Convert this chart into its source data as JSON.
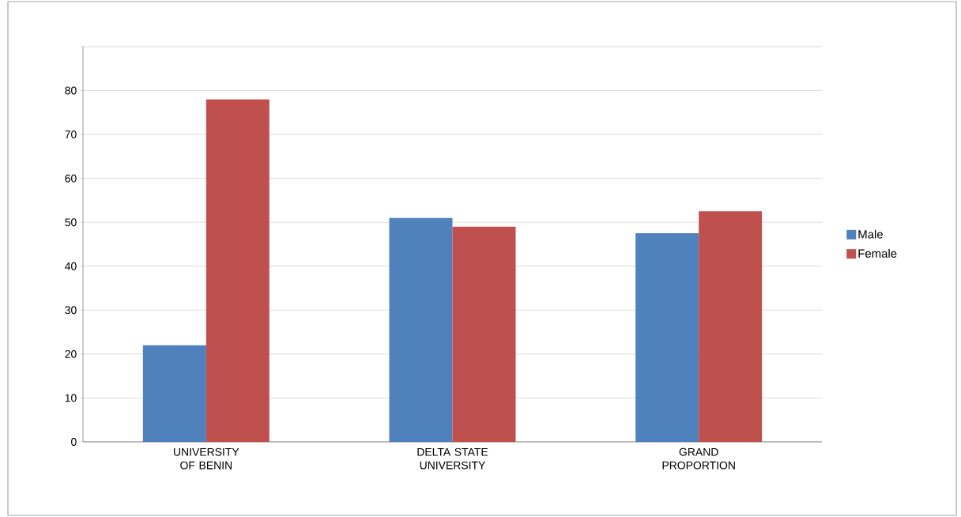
{
  "chart_data": {
    "type": "bar",
    "categories": [
      "UNIVERSITY OF BENIN",
      "DELTA STATE UNIVERSITY",
      "GRAND PROPORTION"
    ],
    "series": [
      {
        "name": "Male",
        "color": "#4f81bd",
        "values": [
          22,
          51,
          47.5
        ]
      },
      {
        "name": "Female",
        "color": "#c0504d",
        "values": [
          78,
          49,
          52.5
        ]
      }
    ],
    "ylim": [
      0,
      90
    ],
    "yticks": [
      0,
      10,
      20,
      30,
      40,
      50,
      60,
      70,
      80,
      {
        "value": 90,
        "label": null
      }
    ],
    "grid": "y",
    "legend": "right"
  }
}
